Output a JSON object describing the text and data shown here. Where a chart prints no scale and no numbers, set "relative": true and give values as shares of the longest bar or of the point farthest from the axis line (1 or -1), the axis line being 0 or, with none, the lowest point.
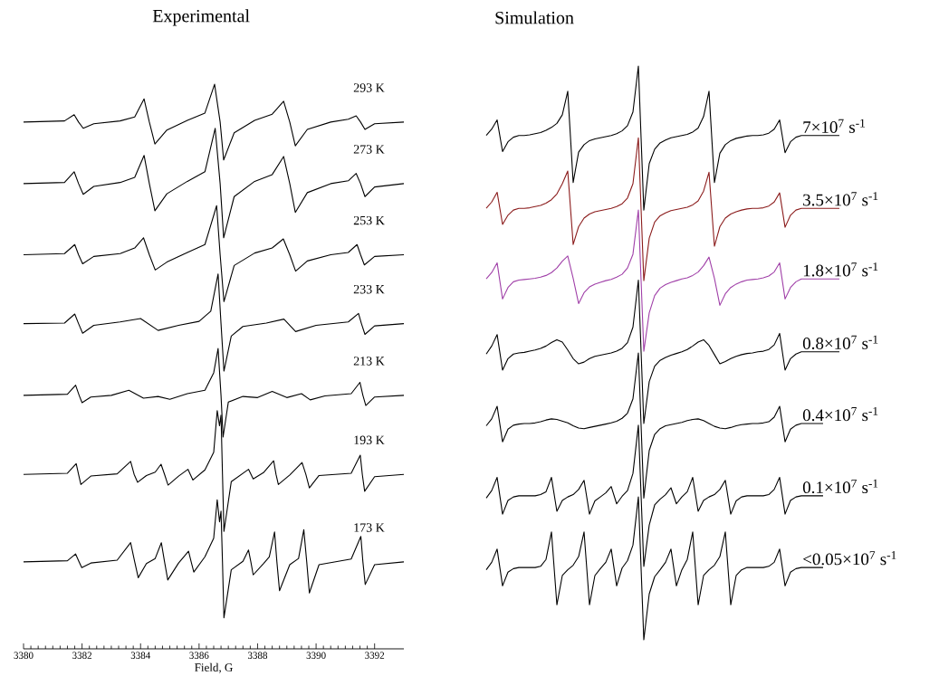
{
  "chart_data": [
    {
      "type": "line",
      "title": "Experimental",
      "xlabel": "Field, G",
      "relative": true,
      "xlim": [
        3380,
        3393
      ],
      "xticks": [
        3380,
        3382,
        3384,
        3386,
        3388,
        3390,
        3392
      ],
      "tick_labels": "x",
      "series": [
        {
          "name": "293 K",
          "color": "#000000",
          "x": [
            3380.0,
            3381.4,
            3381.73,
            3381.88,
            3382.04,
            3382.4,
            3383.3,
            3383.8,
            3384.12,
            3384.3,
            3384.49,
            3384.9,
            3385.6,
            3386.2,
            3386.53,
            3386.72,
            3386.84,
            3387.2,
            3387.9,
            3388.5,
            3388.89,
            3389.1,
            3389.29,
            3389.7,
            3390.5,
            3391.1,
            3391.37,
            3391.52,
            3391.67,
            3392.0,
            3393.0
          ],
          "values": [
            0.933,
            0.935,
            0.946,
            0.933,
            0.922,
            0.93,
            0.935,
            0.942,
            0.974,
            0.933,
            0.894,
            0.919,
            0.936,
            0.949,
            1.0,
            0.933,
            0.866,
            0.914,
            0.936,
            0.947,
            0.97,
            0.933,
            0.891,
            0.92,
            0.933,
            0.938,
            0.944,
            0.933,
            0.92,
            0.93,
            0.933
          ]
        },
        {
          "name": "273 K",
          "color": "#000000",
          "x": [
            3380.0,
            3381.4,
            3381.73,
            3381.88,
            3382.04,
            3382.4,
            3383.3,
            3383.8,
            3384.12,
            3384.3,
            3384.49,
            3384.9,
            3385.6,
            3386.2,
            3386.55,
            3386.72,
            3386.84,
            3387.2,
            3387.9,
            3388.5,
            3388.89,
            3389.1,
            3389.29,
            3389.7,
            3390.5,
            3391.1,
            3391.37,
            3391.52,
            3391.67,
            3392.0,
            3393.0
          ],
          "values": [
            0.824,
            0.826,
            0.845,
            0.824,
            0.805,
            0.819,
            0.826,
            0.835,
            0.874,
            0.824,
            0.776,
            0.806,
            0.828,
            0.845,
            0.922,
            0.824,
            0.728,
            0.801,
            0.828,
            0.84,
            0.872,
            0.824,
            0.773,
            0.808,
            0.824,
            0.829,
            0.842,
            0.824,
            0.801,
            0.818,
            0.824
          ]
        },
        {
          "name": "253 K",
          "color": "#000000",
          "x": [
            3380.0,
            3381.4,
            3381.75,
            3381.88,
            3382.02,
            3382.4,
            3383.3,
            3383.8,
            3384.1,
            3384.3,
            3384.5,
            3384.9,
            3385.6,
            3386.2,
            3386.6,
            3386.72,
            3386.85,
            3387.2,
            3387.9,
            3388.5,
            3388.88,
            3389.1,
            3389.3,
            3389.7,
            3390.5,
            3391.1,
            3391.4,
            3391.52,
            3391.65,
            3392.0,
            3393.0
          ],
          "values": [
            0.698,
            0.7,
            0.716,
            0.698,
            0.682,
            0.695,
            0.7,
            0.71,
            0.728,
            0.698,
            0.671,
            0.685,
            0.702,
            0.716,
            0.785,
            0.698,
            0.615,
            0.679,
            0.701,
            0.71,
            0.726,
            0.698,
            0.669,
            0.687,
            0.698,
            0.702,
            0.716,
            0.698,
            0.68,
            0.695,
            0.698
          ]
        },
        {
          "name": "233 K",
          "color": "#000000",
          "x": [
            3380.0,
            3381.4,
            3381.75,
            3381.88,
            3382.02,
            3382.4,
            3383.3,
            3384.0,
            3384.6,
            3385.3,
            3386.0,
            3386.4,
            3386.65,
            3386.75,
            3386.85,
            3387.1,
            3387.5,
            3388.3,
            3388.9,
            3389.3,
            3390.0,
            3391.1,
            3391.45,
            3391.55,
            3391.67,
            3392.0,
            3393.0
          ],
          "values": [
            0.576,
            0.577,
            0.593,
            0.576,
            0.559,
            0.573,
            0.579,
            0.585,
            0.564,
            0.573,
            0.58,
            0.598,
            0.664,
            0.576,
            0.492,
            0.554,
            0.571,
            0.577,
            0.584,
            0.562,
            0.573,
            0.579,
            0.594,
            0.576,
            0.557,
            0.572,
            0.576
          ]
        },
        {
          "name": "213 K",
          "color": "#000000",
          "x": [
            3380.0,
            3381.5,
            3381.78,
            3381.9,
            3382.0,
            3382.3,
            3383.0,
            3383.6,
            3384.1,
            3384.6,
            3385.0,
            3385.6,
            3386.2,
            3386.5,
            3386.65,
            3386.75,
            3386.82,
            3387.0,
            3387.5,
            3388.0,
            3388.5,
            3389.0,
            3389.5,
            3389.8,
            3390.3,
            3391.2,
            3391.5,
            3391.6,
            3391.7,
            3392.0,
            3393.0
          ],
          "values": [
            0.449,
            0.451,
            0.467,
            0.449,
            0.436,
            0.446,
            0.449,
            0.458,
            0.444,
            0.447,
            0.442,
            0.452,
            0.458,
            0.489,
            0.532,
            0.449,
            0.375,
            0.437,
            0.447,
            0.445,
            0.456,
            0.445,
            0.452,
            0.441,
            0.448,
            0.452,
            0.472,
            0.449,
            0.431,
            0.446,
            0.449
          ]
        },
        {
          "name": "193 K",
          "color": "#000000",
          "x": [
            3380.0,
            3381.5,
            3381.8,
            3381.88,
            3381.96,
            3382.3,
            3383.2,
            3383.66,
            3383.78,
            3383.9,
            3384.2,
            3384.5,
            3384.7,
            3384.82,
            3384.94,
            3385.3,
            3385.62,
            3385.7,
            3385.79,
            3386.2,
            3386.5,
            3386.62,
            3386.7,
            3386.75,
            3386.8,
            3386.85,
            3387.1,
            3387.69,
            3387.85,
            3388.2,
            3388.55,
            3388.63,
            3388.71,
            3389.1,
            3389.52,
            3389.65,
            3389.77,
            3390.1,
            3391.2,
            3391.51,
            3391.58,
            3391.66,
            3392.0,
            3393.0
          ],
          "values": [
            0.309,
            0.311,
            0.328,
            0.309,
            0.291,
            0.306,
            0.31,
            0.332,
            0.309,
            0.295,
            0.307,
            0.313,
            0.327,
            0.309,
            0.29,
            0.306,
            0.318,
            0.309,
            0.299,
            0.317,
            0.348,
            0.422,
            0.395,
            0.414,
            0.309,
            0.208,
            0.296,
            0.318,
            0.301,
            0.312,
            0.333,
            0.309,
            0.291,
            0.308,
            0.33,
            0.309,
            0.285,
            0.307,
            0.311,
            0.343,
            0.309,
            0.279,
            0.305,
            0.309
          ]
        },
        {
          "name": "173 K",
          "color": "#000000",
          "x": [
            3380.0,
            3381.5,
            3381.78,
            3381.9,
            3381.99,
            3382.3,
            3383.2,
            3383.66,
            3383.8,
            3383.92,
            3384.2,
            3384.5,
            3384.71,
            3384.82,
            3384.93,
            3385.3,
            3385.64,
            3385.73,
            3385.82,
            3386.2,
            3386.5,
            3386.62,
            3386.7,
            3386.75,
            3386.8,
            3386.85,
            3387.1,
            3387.5,
            3387.69,
            3387.77,
            3387.85,
            3388.2,
            3388.4,
            3388.58,
            3388.66,
            3388.75,
            3389.1,
            3389.4,
            3389.58,
            3389.68,
            3389.77,
            3390.1,
            3391.2,
            3391.53,
            3391.6,
            3391.68,
            3392.0,
            3393.0
          ],
          "values": [
            0.154,
            0.156,
            0.168,
            0.154,
            0.144,
            0.152,
            0.157,
            0.188,
            0.154,
            0.126,
            0.151,
            0.16,
            0.188,
            0.154,
            0.122,
            0.152,
            0.173,
            0.154,
            0.136,
            0.163,
            0.196,
            0.264,
            0.225,
            0.244,
            0.154,
            0.055,
            0.14,
            0.155,
            0.175,
            0.154,
            0.131,
            0.151,
            0.163,
            0.207,
            0.154,
            0.103,
            0.149,
            0.16,
            0.211,
            0.154,
            0.099,
            0.149,
            0.159,
            0.199,
            0.154,
            0.114,
            0.149,
            0.154
          ]
        }
      ]
    },
    {
      "type": "line",
      "title": "Simulation",
      "relative": true,
      "tick_labels": false,
      "categories": [
        null,
        null,
        null,
        null,
        null,
        null,
        null,
        null,
        null,
        null,
        null,
        null,
        null,
        null,
        null,
        null,
        null,
        null,
        null,
        null,
        null,
        null,
        null,
        null,
        null,
        null,
        null,
        null,
        null,
        null,
        null,
        null,
        null,
        null,
        null,
        null,
        null,
        null,
        null,
        null,
        null,
        null,
        null,
        null,
        null,
        null,
        null,
        null,
        null,
        null,
        null,
        null,
        null,
        null,
        null,
        null,
        null,
        null,
        null,
        null,
        null,
        null,
        null,
        null,
        null,
        null
      ],
      "series": [
        {
          "name": "7×10$^{7}$ s$^{-1}$",
          "color": "#000000",
          "values": [
            0.879,
            0.89,
            0.906,
            0.851,
            0.868,
            0.876,
            0.879,
            0.879,
            0.88,
            0.882,
            0.884,
            0.888,
            0.893,
            0.9,
            0.915,
            0.956,
            0.797,
            0.85,
            0.863,
            0.87,
            0.873,
            0.875,
            0.877,
            0.879,
            0.882,
            0.887,
            0.896,
            0.92,
            1.0,
            0.749,
            0.83,
            0.855,
            0.866,
            0.871,
            0.875,
            0.877,
            0.879,
            0.881,
            0.885,
            0.892,
            0.912,
            0.956,
            0.797,
            0.848,
            0.863,
            0.87,
            0.874,
            0.876,
            0.878,
            0.879,
            0.879,
            0.88,
            0.883,
            0.89,
            0.906,
            0.849,
            0.868,
            0.876,
            0.879,
            0.879,
            0.879,
            0.879,
            0.879,
            0.879,
            0.879,
            0.879
          ]
        },
        {
          "name": "3.5×10$^{7}$ s$^{-1}$",
          "color": "#8b1c1c",
          "values": [
            0.752,
            0.763,
            0.78,
            0.724,
            0.74,
            0.749,
            0.752,
            0.752,
            0.753,
            0.755,
            0.757,
            0.761,
            0.767,
            0.777,
            0.795,
            0.817,
            0.689,
            0.72,
            0.735,
            0.742,
            0.746,
            0.748,
            0.75,
            0.752,
            0.755,
            0.76,
            0.77,
            0.795,
            0.875,
            0.626,
            0.7,
            0.728,
            0.739,
            0.744,
            0.748,
            0.75,
            0.752,
            0.754,
            0.758,
            0.765,
            0.782,
            0.815,
            0.686,
            0.72,
            0.735,
            0.742,
            0.746,
            0.749,
            0.751,
            0.752,
            0.752,
            0.753,
            0.756,
            0.763,
            0.779,
            0.719,
            0.74,
            0.749,
            0.752,
            0.752,
            0.752,
            0.752,
            0.752,
            0.752,
            0.752,
            0.752
          ]
        },
        {
          "name": "1.8×10$^{7}$ s$^{-1}$",
          "color": "#a040a8",
          "values": [
            0.629,
            0.64,
            0.657,
            0.594,
            0.614,
            0.624,
            0.627,
            0.628,
            0.629,
            0.63,
            0.632,
            0.635,
            0.64,
            0.648,
            0.66,
            0.669,
            0.63,
            0.586,
            0.605,
            0.615,
            0.62,
            0.623,
            0.626,
            0.628,
            0.632,
            0.637,
            0.648,
            0.672,
            0.749,
            0.503,
            0.57,
            0.6,
            0.613,
            0.619,
            0.623,
            0.626,
            0.629,
            0.631,
            0.635,
            0.641,
            0.652,
            0.667,
            0.63,
            0.583,
            0.603,
            0.614,
            0.62,
            0.624,
            0.627,
            0.628,
            0.629,
            0.631,
            0.634,
            0.641,
            0.657,
            0.594,
            0.614,
            0.624,
            0.629,
            0.629,
            0.629,
            0.629,
            0.629,
            0.629,
            0.629,
            0.629
          ]
        },
        {
          "name": "0.8×10$^{7}$ s$^{-1}$",
          "color": "#000000",
          "values": [
            0.498,
            0.512,
            0.532,
            0.47,
            0.49,
            0.498,
            0.5,
            0.501,
            0.503,
            0.505,
            0.508,
            0.512,
            0.518,
            0.523,
            0.519,
            0.505,
            0.49,
            0.481,
            0.484,
            0.49,
            0.494,
            0.496,
            0.498,
            0.5,
            0.503,
            0.508,
            0.518,
            0.545,
            0.627,
            0.377,
            0.45,
            0.477,
            0.487,
            0.492,
            0.496,
            0.499,
            0.502,
            0.506,
            0.512,
            0.519,
            0.523,
            0.513,
            0.497,
            0.481,
            0.485,
            0.49,
            0.494,
            0.497,
            0.499,
            0.5,
            0.502,
            0.503,
            0.506,
            0.514,
            0.534,
            0.47,
            0.49,
            0.498,
            0.502,
            0.502,
            0.502,
            0.502,
            0.502,
            0.502,
            0.502,
            0.502
          ]
        },
        {
          "name": "0.4×10$^{7}$ s$^{-1}$",
          "color": "#000000",
          "values": [
            0.373,
            0.385,
            0.407,
            0.345,
            0.367,
            0.374,
            0.376,
            0.377,
            0.377,
            0.378,
            0.38,
            0.383,
            0.385,
            0.384,
            0.381,
            0.378,
            0.373,
            0.369,
            0.368,
            0.37,
            0.372,
            0.374,
            0.376,
            0.378,
            0.381,
            0.386,
            0.395,
            0.42,
            0.5,
            0.247,
            0.33,
            0.358,
            0.368,
            0.373,
            0.375,
            0.377,
            0.379,
            0.382,
            0.384,
            0.385,
            0.382,
            0.377,
            0.372,
            0.369,
            0.368,
            0.37,
            0.373,
            0.375,
            0.376,
            0.377,
            0.377,
            0.378,
            0.38,
            0.388,
            0.407,
            0.345,
            0.367,
            0.374,
            0.377,
            0.377,
            0.377,
            0.377,
            0.377,
            null,
            null,
            null
          ]
        },
        {
          "name": "0.1×10$^{7}$ s$^{-1}$",
          "color": "#000000",
          "values": [
            0.247,
            0.26,
            0.283,
            0.219,
            0.243,
            0.249,
            0.251,
            0.251,
            0.251,
            0.251,
            0.253,
            0.258,
            0.283,
            0.224,
            0.243,
            0.249,
            0.253,
            0.262,
            0.278,
            0.219,
            0.242,
            0.249,
            0.256,
            0.267,
            0.237,
            0.25,
            0.26,
            0.29,
            0.374,
            0.128,
            0.2,
            0.235,
            0.245,
            0.253,
            0.265,
            0.237,
            0.249,
            0.258,
            0.283,
            0.224,
            0.243,
            0.249,
            0.253,
            0.262,
            0.278,
            0.219,
            0.242,
            0.249,
            0.251,
            0.251,
            0.251,
            0.251,
            0.253,
            0.262,
            0.283,
            0.219,
            0.243,
            0.249,
            0.251,
            0.251,
            0.251,
            0.251,
            0.251,
            null,
            null,
            null
          ]
        },
        {
          "name": "<0.05×10$^{7}$ s$^{-1}$",
          "color": "#000000",
          "values": [
            0.122,
            0.135,
            0.158,
            0.094,
            0.118,
            0.124,
            0.126,
            0.126,
            0.126,
            0.126,
            0.128,
            0.14,
            0.188,
            0.061,
            0.112,
            0.122,
            0.13,
            0.145,
            0.188,
            0.061,
            0.112,
            0.124,
            0.135,
            0.158,
            0.094,
            0.125,
            0.138,
            0.165,
            0.249,
            0.0,
            0.08,
            0.11,
            0.122,
            0.135,
            0.158,
            0.094,
            0.122,
            0.14,
            0.188,
            0.061,
            0.112,
            0.122,
            0.13,
            0.145,
            0.188,
            0.061,
            0.112,
            0.122,
            0.126,
            0.126,
            0.126,
            0.126,
            0.128,
            0.135,
            0.158,
            0.094,
            0.118,
            0.124,
            0.126,
            0.126,
            0.126,
            0.126,
            0.126,
            null,
            null,
            null
          ]
        }
      ]
    }
  ]
}
